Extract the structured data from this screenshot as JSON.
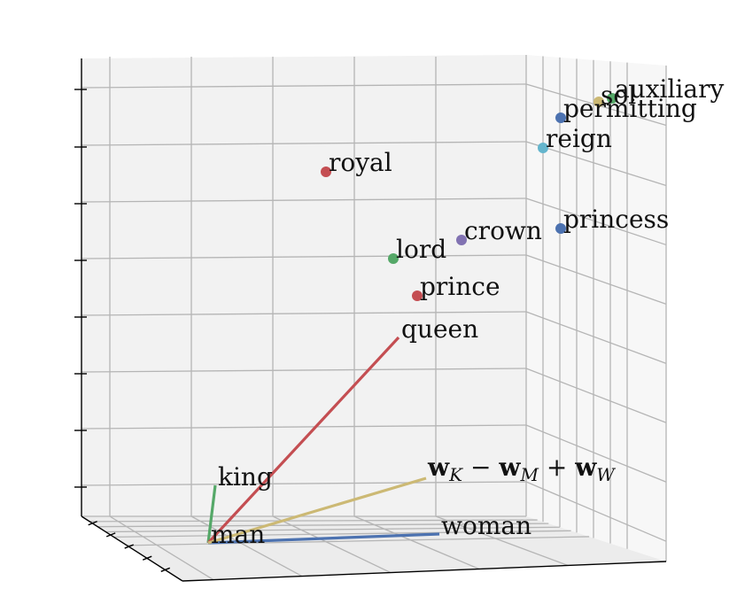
{
  "chart_data": {
    "type": "scatter",
    "projection": "3d",
    "grid": true,
    "pane_color": "#f2f2f2",
    "points": [
      {
        "label": "royal",
        "color": "#c44e52"
      },
      {
        "label": "lord",
        "color": "#55a868"
      },
      {
        "label": "crown",
        "color": "#8172b2"
      },
      {
        "label": "prince",
        "color": "#c44e52"
      },
      {
        "label": "princess",
        "color": "#4c72b0"
      },
      {
        "label": "reign",
        "color": "#64b5cd"
      },
      {
        "label": "permitting",
        "color": "#4c72b0"
      },
      {
        "label": "sol",
        "color": "#ccb974"
      },
      {
        "label": "auxiliary",
        "color": "#55a868"
      }
    ],
    "vectors": [
      {
        "label": "king",
        "color": "#55a868"
      },
      {
        "label": "queen",
        "color": "#c44e52"
      },
      {
        "label": "woman",
        "color": "#4c72b0"
      },
      {
        "label": "w_K - w_M + w_W",
        "color": "#ccb974"
      }
    ],
    "origin_label": "man",
    "formula": {
      "w": "w",
      "sub_K": "K",
      "minus": " − ",
      "sub_M": "M",
      "plus": " + ",
      "sub_W": "W"
    }
  }
}
